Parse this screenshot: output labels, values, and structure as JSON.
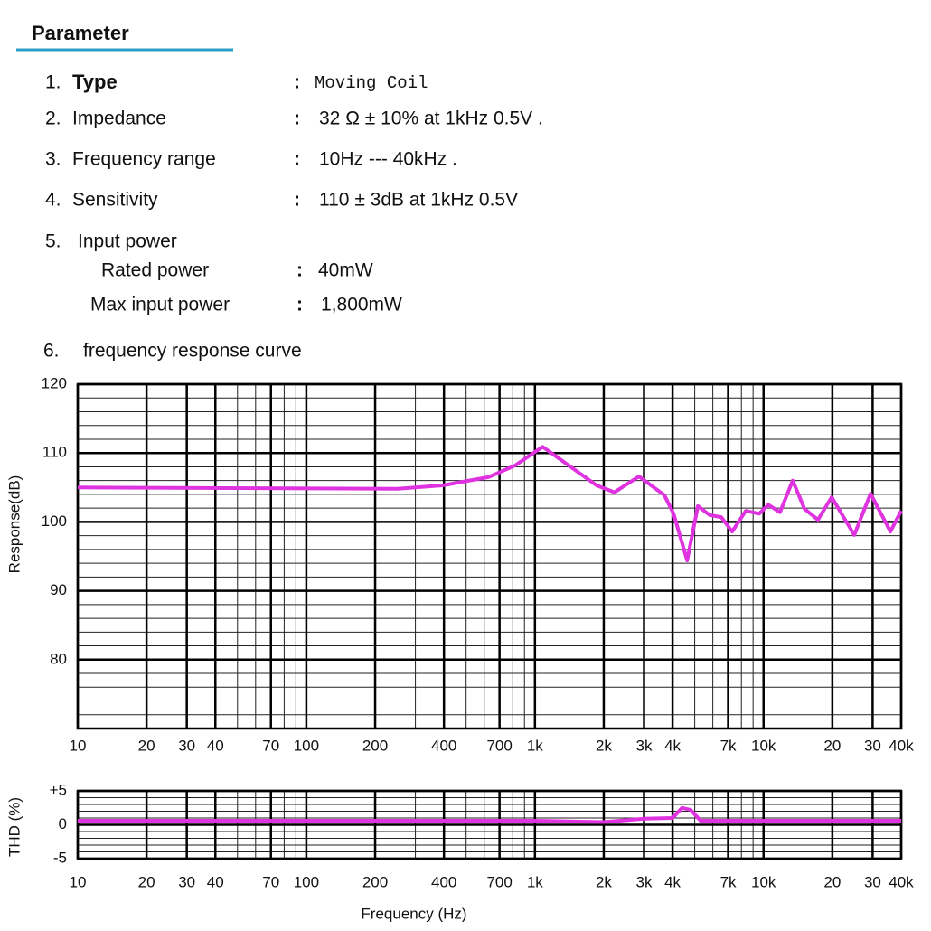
{
  "header": {
    "title": "Parameter"
  },
  "params": [
    {
      "num": "1.",
      "label": "Type",
      "colon": ":",
      "value": "Moving Coil"
    },
    {
      "num": "2.",
      "label": "Impedance",
      "colon": ":",
      "value": "32 Ω ± 10% at 1kHz 0.5V ."
    },
    {
      "num": "3.",
      "label": "Frequency range",
      "colon": ":",
      "value": "10Hz --- 40kHz ."
    },
    {
      "num": "4.",
      "label": "Sensitivity",
      "colon": ":",
      "value": "110 ± 3dB at 1kHz 0.5V"
    },
    {
      "num": "5.",
      "label": "Input power",
      "sub": [
        {
          "label": "Rated power",
          "colon": ":",
          "value": "40mW"
        },
        {
          "label": "Max input power",
          "colon": ":",
          "value": "1,800mW"
        }
      ]
    },
    {
      "num": "6.",
      "label": "frequency response curve"
    }
  ],
  "chart_data": [
    {
      "type": "line",
      "ylabel": "Response(dB)",
      "log_x": true,
      "color": "#e033e0",
      "grid": true,
      "x": [
        10,
        250,
        395,
        625,
        820,
        1080,
        1420,
        1860,
        2230,
        2850,
        3680,
        4040,
        4630,
        5160,
        5810,
        6530,
        7290,
        8360,
        9570,
        10490,
        11800,
        13420,
        15100,
        17300,
        19860,
        24930,
        29380,
        35890,
        40000
      ],
      "values": [
        105,
        104.8,
        105.3,
        106.5,
        108.2,
        110.9,
        108.1,
        105.3,
        104.3,
        106.6,
        103.9,
        101.2,
        94.4,
        102.3,
        101,
        100.7,
        98.6,
        101.6,
        101.2,
        102.5,
        101.4,
        106,
        101.9,
        100.3,
        103.6,
        98.1,
        104.1,
        98.6,
        101.6
      ],
      "xlim": [
        10,
        40000
      ],
      "xticks": [
        10,
        20,
        30,
        40,
        70,
        100,
        200,
        400,
        700,
        {
          "value": 1000,
          "label": "1k"
        },
        {
          "value": 2000,
          "label": "2k"
        },
        {
          "value": 3000,
          "label": "3k"
        },
        {
          "value": 4000,
          "label": "4k"
        },
        {
          "value": 7000,
          "label": "7k"
        },
        {
          "value": 10000,
          "label": "10k"
        },
        {
          "value": 20000,
          "label": "20"
        },
        {
          "value": 30000,
          "label": "30"
        },
        {
          "value": 40000,
          "label": "40k"
        }
      ],
      "ylim": [
        70,
        120
      ],
      "yticks": [
        80,
        90,
        100,
        110,
        120
      ]
    },
    {
      "type": "line",
      "ylabel": "THD (%)",
      "xlabel": "Frequency (Hz)",
      "log_x": true,
      "color": "#e033e0",
      "grid": true,
      "x": [
        10,
        1000,
        2000,
        3000,
        4000,
        4400,
        4800,
        5300,
        40000
      ],
      "values": [
        0.6,
        0.6,
        0.4,
        0.9,
        1.0,
        2.5,
        2.2,
        0.6,
        0.6
      ],
      "xlim": [
        10,
        40000
      ],
      "xticks": [
        10,
        20,
        30,
        40,
        70,
        100,
        200,
        400,
        700,
        {
          "value": 1000,
          "label": "1k"
        },
        {
          "value": 2000,
          "label": "2k"
        },
        {
          "value": 3000,
          "label": "3k"
        },
        {
          "value": 4000,
          "label": "4k"
        },
        {
          "value": 7000,
          "label": "7k"
        },
        {
          "value": 10000,
          "label": "10k"
        },
        {
          "value": 20000,
          "label": "20"
        },
        {
          "value": 30000,
          "label": "30"
        },
        {
          "value": 40000,
          "label": "40k"
        }
      ],
      "ylim": [
        -5,
        5
      ],
      "yticks": [
        {
          "value": 5,
          "label": "+5"
        },
        0,
        -5
      ]
    }
  ]
}
